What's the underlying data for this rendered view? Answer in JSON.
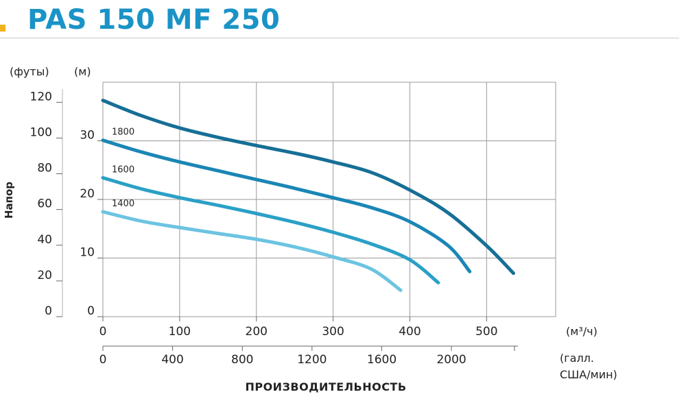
{
  "header": {
    "title": "PAS 150 MF 250",
    "accent_color": "#1a93c6",
    "mark_color": "#f2b21c"
  },
  "chart_data": {
    "type": "line",
    "title": "",
    "ylabel": "Напор",
    "ylabel_left_unit": "(футы)",
    "ylabel_right_unit": "(м)",
    "xlabel": "ПРОИЗВОДИТЕЛЬНОСТЬ",
    "x_unit": "(м³/ч)",
    "x2_unit": "(галл. США/мин)",
    "x2_unit_lines": [
      "(галл.",
      "США/мин)"
    ],
    "xlim": [
      0,
      590
    ],
    "ylim_m": [
      0,
      40
    ],
    "grid": true,
    "x_ticks": [
      0,
      100,
      200,
      300,
      400,
      500
    ],
    "x_tick_labels": [
      "0",
      "100",
      "200",
      "300",
      "400",
      "500"
    ],
    "x2_ticks_m3h": [
      0,
      90.8,
      181.7,
      272.5,
      363.4,
      454.2
    ],
    "x2_tick_labels": [
      "0",
      "400",
      "800",
      "1200",
      "1600",
      "2000"
    ],
    "y_m_tick_labels": [
      {
        "value": 0,
        "label": "0"
      },
      {
        "value": 10,
        "label": "10"
      },
      {
        "value": 20,
        "label": "20"
      },
      {
        "value": 30,
        "label": "30"
      }
    ],
    "y_ft_tick_labels": [
      {
        "value": 0,
        "label": "0"
      },
      {
        "value": 20,
        "label": "20"
      },
      {
        "value": 40,
        "label": "40"
      },
      {
        "value": 60,
        "label": "60"
      },
      {
        "value": 80,
        "label": "80"
      },
      {
        "value": 100,
        "label": "100"
      },
      {
        "value": 120,
        "label": "120"
      }
    ],
    "series": [
      {
        "label": "",
        "color": "#166f96",
        "x": [
          0,
          50,
          100,
          150,
          200,
          250,
          300,
          350,
          400,
          450,
          500,
          535
        ],
        "y": [
          36.9,
          34.3,
          32.2,
          30.6,
          29.2,
          27.9,
          26.4,
          24.6,
          21.6,
          17.7,
          12.1,
          7.4
        ]
      },
      {
        "label": "1800",
        "color": "#1a86b5",
        "x": [
          0,
          50,
          100,
          150,
          200,
          250,
          300,
          350,
          400,
          450,
          478
        ],
        "y": [
          30.1,
          28.1,
          26.4,
          24.9,
          23.4,
          21.9,
          20.3,
          18.6,
          16.2,
          12.1,
          7.7
        ]
      },
      {
        "label": "1600",
        "color": "#2ba0c6",
        "x": [
          0,
          50,
          100,
          150,
          200,
          250,
          300,
          350,
          400,
          437
        ],
        "y": [
          23.7,
          21.8,
          20.3,
          19.0,
          17.6,
          16.1,
          14.4,
          12.4,
          9.7,
          5.8
        ]
      },
      {
        "label": "1400",
        "color": "#6cc4e1",
        "x": [
          0,
          50,
          100,
          150,
          200,
          250,
          300,
          350,
          388
        ],
        "y": [
          17.9,
          16.3,
          15.2,
          14.2,
          13.2,
          11.9,
          10.2,
          8.1,
          4.5
        ]
      }
    ]
  }
}
